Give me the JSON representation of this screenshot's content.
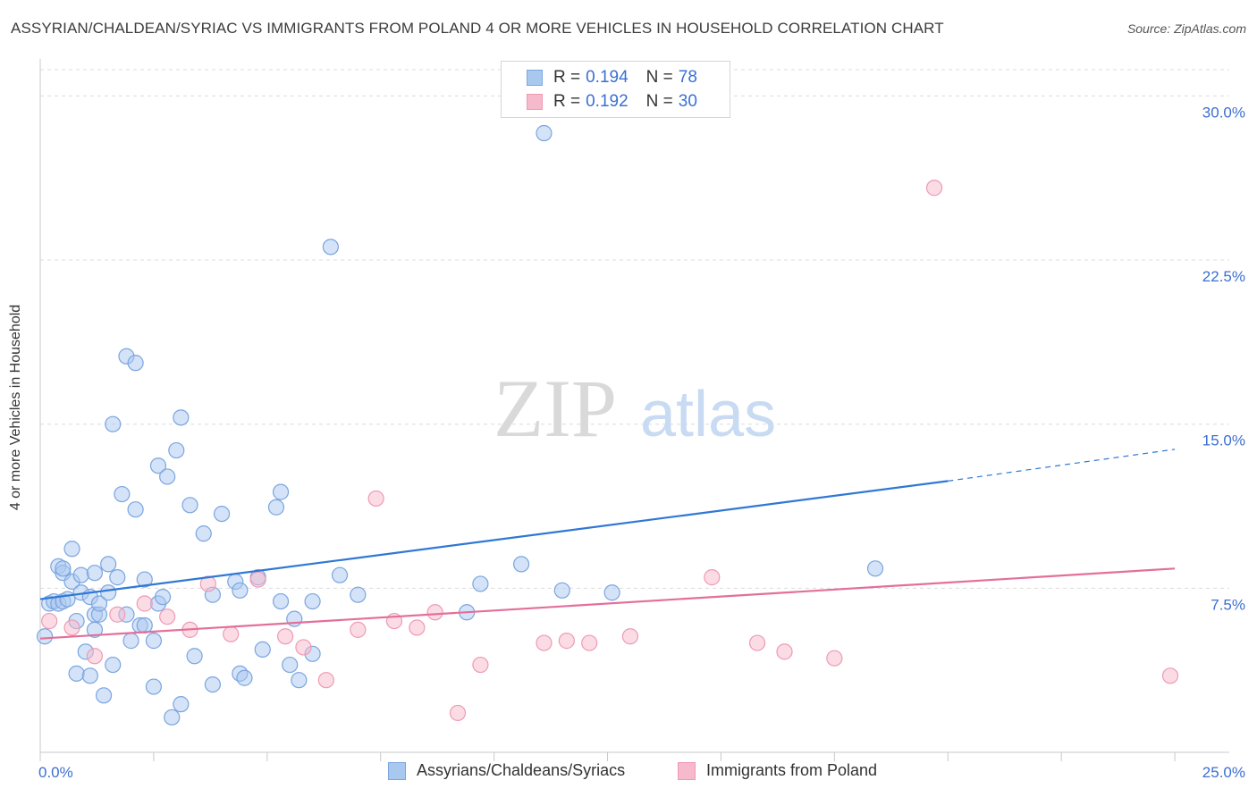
{
  "title": "ASSYRIAN/CHALDEAN/SYRIAC VS IMMIGRANTS FROM POLAND 4 OR MORE VEHICLES IN HOUSEHOLD CORRELATION CHART",
  "source": "Source: ZipAtlas.com",
  "watermark": {
    "zip": "ZIP",
    "atlas": "atlas"
  },
  "legend": {
    "rows": [
      {
        "r_label": "R = ",
        "r_value": "0.194",
        "n_label": "N = ",
        "n_value": "78"
      },
      {
        "r_label": "R = ",
        "r_value": "0.192",
        "n_label": "N = ",
        "n_value": "30"
      }
    ]
  },
  "bottom_legend": [
    "Assyrians/Chaldeans/Syriacs",
    "Immigrants from Poland"
  ],
  "colors": {
    "blue_fill": "#a9c8f0",
    "blue_stroke": "#7aa5e0",
    "blue_line": "#2f78d4",
    "pink_fill": "#f7b9cc",
    "pink_stroke": "#ee9ab4",
    "pink_line": "#e36f9a",
    "axis_text": "#3b6fd1",
    "grid": "#dcdcdc"
  },
  "chart_data": {
    "type": "scatter",
    "xlabel": "",
    "ylabel": "4 or more Vehicles in Household",
    "x_tick_labels": [
      "0.0%",
      "25.0%"
    ],
    "y_tick_labels": [
      "7.5%",
      "15.0%",
      "22.5%",
      "30.0%"
    ],
    "y_ticks": [
      7.5,
      15.0,
      22.5,
      30.0
    ],
    "xlim": [
      0,
      26.2
    ],
    "ylim": [
      0,
      31.2
    ],
    "grid": true,
    "legend_position": "top-center",
    "series": [
      {
        "name": "Assyrians/Chaldeans/Syriacs",
        "points": [
          [
            0.1,
            5.3
          ],
          [
            0.2,
            6.8
          ],
          [
            0.3,
            6.9
          ],
          [
            0.4,
            6.8
          ],
          [
            0.4,
            8.5
          ],
          [
            0.5,
            8.2
          ],
          [
            0.5,
            8.4
          ],
          [
            0.5,
            6.9
          ],
          [
            0.6,
            7.0
          ],
          [
            0.7,
            9.3
          ],
          [
            0.7,
            7.8
          ],
          [
            0.8,
            6.0
          ],
          [
            0.8,
            3.6
          ],
          [
            0.9,
            7.3
          ],
          [
            0.9,
            8.1
          ],
          [
            1.0,
            4.6
          ],
          [
            1.1,
            7.1
          ],
          [
            1.1,
            3.5
          ],
          [
            1.2,
            5.6
          ],
          [
            1.2,
            6.3
          ],
          [
            1.2,
            8.2
          ],
          [
            1.3,
            6.3
          ],
          [
            1.3,
            6.8
          ],
          [
            1.4,
            2.6
          ],
          [
            1.5,
            7.3
          ],
          [
            1.5,
            8.6
          ],
          [
            1.6,
            4.0
          ],
          [
            1.6,
            15.0
          ],
          [
            1.7,
            8.0
          ],
          [
            1.8,
            11.8
          ],
          [
            1.9,
            18.1
          ],
          [
            1.9,
            6.3
          ],
          [
            2.0,
            5.1
          ],
          [
            2.1,
            17.8
          ],
          [
            2.1,
            11.1
          ],
          [
            2.2,
            5.8
          ],
          [
            2.3,
            5.8
          ],
          [
            2.3,
            7.9
          ],
          [
            2.5,
            3.0
          ],
          [
            2.5,
            5.1
          ],
          [
            2.6,
            6.8
          ],
          [
            2.6,
            13.1
          ],
          [
            2.7,
            7.1
          ],
          [
            2.8,
            12.6
          ],
          [
            2.9,
            1.6
          ],
          [
            3.0,
            13.8
          ],
          [
            3.1,
            15.3
          ],
          [
            3.1,
            2.2
          ],
          [
            3.3,
            11.3
          ],
          [
            3.4,
            4.4
          ],
          [
            3.6,
            10.0
          ],
          [
            3.8,
            7.2
          ],
          [
            3.8,
            3.1
          ],
          [
            4.0,
            10.9
          ],
          [
            4.3,
            7.8
          ],
          [
            4.4,
            3.6
          ],
          [
            4.4,
            7.4
          ],
          [
            4.5,
            3.4
          ],
          [
            4.8,
            8.0
          ],
          [
            4.9,
            4.7
          ],
          [
            5.2,
            11.2
          ],
          [
            5.3,
            11.9
          ],
          [
            5.3,
            6.9
          ],
          [
            5.5,
            4.0
          ],
          [
            5.6,
            6.1
          ],
          [
            5.7,
            3.3
          ],
          [
            6.0,
            6.9
          ],
          [
            6.0,
            4.5
          ],
          [
            6.4,
            23.1
          ],
          [
            6.6,
            8.1
          ],
          [
            7.0,
            7.2
          ],
          [
            9.4,
            6.4
          ],
          [
            9.7,
            7.7
          ],
          [
            10.6,
            8.6
          ],
          [
            11.1,
            28.3
          ],
          [
            11.5,
            7.4
          ],
          [
            12.6,
            7.3
          ],
          [
            18.4,
            8.4
          ]
        ]
      },
      {
        "name": "Immigrants from Poland",
        "points": [
          [
            0.2,
            6.0
          ],
          [
            0.7,
            5.7
          ],
          [
            1.2,
            4.4
          ],
          [
            1.7,
            6.3
          ],
          [
            2.3,
            6.8
          ],
          [
            2.8,
            6.2
          ],
          [
            3.3,
            5.6
          ],
          [
            3.7,
            7.7
          ],
          [
            4.2,
            5.4
          ],
          [
            4.8,
            7.9
          ],
          [
            5.4,
            5.3
          ],
          [
            5.8,
            4.8
          ],
          [
            6.3,
            3.3
          ],
          [
            7.0,
            5.6
          ],
          [
            7.4,
            11.6
          ],
          [
            7.8,
            6.0
          ],
          [
            8.3,
            5.7
          ],
          [
            8.7,
            6.4
          ],
          [
            9.2,
            1.8
          ],
          [
            9.7,
            4.0
          ],
          [
            11.1,
            5.0
          ],
          [
            11.6,
            5.1
          ],
          [
            12.1,
            5.0
          ],
          [
            13.0,
            5.3
          ],
          [
            14.8,
            8.0
          ],
          [
            15.8,
            5.0
          ],
          [
            16.4,
            4.6
          ],
          [
            17.5,
            4.3
          ],
          [
            19.7,
            25.8
          ],
          [
            24.9,
            3.5
          ]
        ]
      }
    ],
    "trend_lines": [
      {
        "series": "Assyrians/Chaldeans/Syriacs",
        "x_start": 0,
        "y_start": 7.0,
        "x_solid_end": 20.0,
        "y_solid_end": 12.4,
        "x_end": 25.0,
        "y_end": 13.85
      },
      {
        "series": "Immigrants from Poland",
        "x_start": 0,
        "y_start": 5.2,
        "x_end": 25.0,
        "y_end": 8.4
      }
    ]
  }
}
